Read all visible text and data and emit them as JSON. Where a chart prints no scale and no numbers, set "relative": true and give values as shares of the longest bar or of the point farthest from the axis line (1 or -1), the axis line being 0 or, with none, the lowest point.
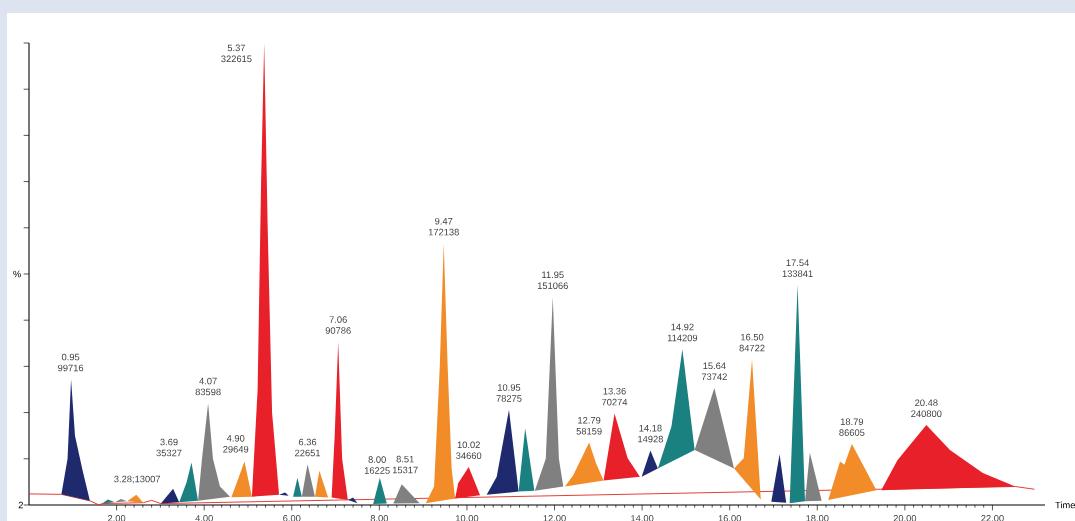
{
  "chart_data": {
    "type": "area",
    "relative": true,
    "xlabel": "Time",
    "ylabel": "%",
    "xlim": [
      0,
      23.2
    ],
    "xticks": [
      {
        "value": 2,
        "label": "2.00"
      },
      {
        "value": 4,
        "label": "4.00"
      },
      {
        "value": 6,
        "label": "6.00"
      },
      {
        "value": 8,
        "label": "8.00"
      },
      {
        "value": 10,
        "label": "10.00"
      },
      {
        "value": 12,
        "label": "12.00"
      },
      {
        "value": 14,
        "label": "14.00"
      },
      {
        "value": 16,
        "label": "16.00"
      },
      {
        "value": 18,
        "label": "18.00"
      },
      {
        "value": 20,
        "label": "20.00"
      },
      {
        "value": 22,
        "label": "22.00"
      }
    ],
    "series": [
      {
        "type": "line",
        "color": "#e0302a",
        "x": [
          0,
          0.74,
          1.39,
          1.6,
          1.67,
          2.61,
          2.8,
          3.01,
          22.52,
          22.96
        ],
        "values": [
          0.024,
          0.023,
          0.009,
          0.0,
          0.003,
          0.005,
          0.01,
          0.003,
          0.04,
          0.034
        ]
      },
      {
        "color": "#1f2a6e",
        "x": [
          0.74,
          0.88,
          0.96,
          1.05,
          1.22,
          1.39
        ],
        "values": [
          0.023,
          0.1,
          0.272,
          0.15,
          0.076,
          0.009
        ]
      },
      {
        "color": "#1a8080",
        "x": [
          1.67,
          1.8,
          1.96
        ],
        "values": [
          0.003,
          0.012,
          0.006
        ]
      },
      {
        "color": "#808080",
        "x": [
          1.96,
          2.1,
          2.24
        ],
        "values": [
          0.006,
          0.013,
          0.008
        ]
      },
      {
        "color": "#f28c28",
        "x": [
          2.24,
          2.45,
          2.61
        ],
        "values": [
          0.008,
          0.022,
          0.005
        ]
      },
      {
        "color": "#1f2a6e",
        "x": [
          3.01,
          3.29,
          3.43
        ],
        "values": [
          0.003,
          0.035,
          0.006
        ]
      },
      {
        "color": "#1a8080",
        "x": [
          3.43,
          3.6,
          3.71,
          3.86
        ],
        "values": [
          0.006,
          0.05,
          0.092,
          0.009
        ]
      },
      {
        "color": "#808080",
        "x": [
          3.86,
          3.95,
          4.09,
          4.2,
          4.36,
          4.59
        ],
        "values": [
          0.009,
          0.1,
          0.22,
          0.1,
          0.04,
          0.018
        ]
      },
      {
        "color": "#f28c28",
        "x": [
          4.62,
          4.75,
          4.92,
          5.09
        ],
        "values": [
          0.017,
          0.05,
          0.094,
          0.018
        ]
      },
      {
        "color": "#e8202a",
        "x": [
          5.09,
          5.22,
          5.3,
          5.37,
          5.45,
          5.55,
          5.71
        ],
        "values": [
          0.018,
          0.25,
          0.7,
          1,
          0.6,
          0.2,
          0.022
        ]
      },
      {
        "color": "#1f2a6e",
        "x": [
          5.71,
          5.85,
          5.93
        ],
        "values": [
          0.022,
          0.027,
          0.02
        ]
      },
      {
        "color": "#1a8080",
        "x": [
          6.03,
          6.13,
          6.23
        ],
        "values": [
          0.018,
          0.059,
          0.018
        ]
      },
      {
        "color": "#808080",
        "x": [
          6.23,
          6.36,
          6.53
        ],
        "values": [
          0.018,
          0.088,
          0.018
        ]
      },
      {
        "color": "#f28c28",
        "x": [
          6.53,
          6.63,
          6.83
        ],
        "values": [
          0.018,
          0.074,
          0.016
        ]
      },
      {
        "color": "#e8202a",
        "x": [
          6.91,
          6.98,
          7.06,
          7.15,
          7.28
        ],
        "values": [
          0.016,
          0.15,
          0.353,
          0.1,
          0.011
        ]
      },
      {
        "color": "#1f2a6e",
        "x": [
          7.29,
          7.4,
          7.5
        ],
        "values": [
          0.011,
          0.016,
          0.004
        ]
      },
      {
        "color": "#1a8080",
        "x": [
          7.86,
          8.01,
          8.17
        ],
        "values": [
          0.002,
          0.059,
          0.003
        ]
      },
      {
        "color": "#808080",
        "x": [
          8.32,
          8.51,
          8.71,
          8.92
        ],
        "values": [
          0.003,
          0.045,
          0.025,
          0.004
        ]
      },
      {
        "color": "#f28c28",
        "x": [
          9.06,
          9.25,
          9.38,
          9.47,
          9.56,
          9.65,
          9.73
        ],
        "values": [
          0.004,
          0.04,
          0.3,
          0.566,
          0.3,
          0.08,
          0.014
        ]
      },
      {
        "color": "#e8202a",
        "x": [
          9.73,
          9.8,
          10.04,
          10.3
        ],
        "values": [
          0.014,
          0.047,
          0.082,
          0.021
        ]
      },
      {
        "color": "#1f2a6e",
        "x": [
          10.45,
          10.68,
          10.96,
          11.18
        ],
        "values": [
          0.022,
          0.061,
          0.206,
          0.029
        ]
      },
      {
        "color": "#1a8080",
        "x": [
          11.18,
          11.33,
          11.54
        ],
        "values": [
          0.029,
          0.166,
          0.031
        ]
      },
      {
        "color": "#808080",
        "x": [
          11.55,
          11.8,
          11.96,
          12.1,
          12.2
        ],
        "values": [
          0.031,
          0.1,
          0.45,
          0.1,
          0.04
        ]
      },
      {
        "color": "#f28c28",
        "x": [
          12.24,
          12.43,
          12.79,
          12.95,
          13.12
        ],
        "values": [
          0.04,
          0.065,
          0.135,
          0.09,
          0.053
        ]
      },
      {
        "color": "#e8202a",
        "x": [
          13.12,
          13.37,
          13.67,
          13.95
        ],
        "values": [
          0.053,
          0.198,
          0.101,
          0.061
        ]
      },
      {
        "color": "#1f2a6e",
        "x": [
          13.99,
          14.19,
          14.36
        ],
        "values": [
          0.061,
          0.118,
          0.079
        ]
      },
      {
        "color": "#1a8080",
        "x": [
          14.36,
          14.67,
          14.92,
          15.2
        ],
        "values": [
          0.079,
          0.17,
          0.337,
          0.119
        ]
      },
      {
        "color": "#808080",
        "x": [
          15.2,
          15.65,
          16.1
        ],
        "values": [
          0.119,
          0.253,
          0.079
        ]
      },
      {
        "color": "#f28c28",
        "x": [
          16.1,
          16.32,
          16.51,
          16.71
        ],
        "values": [
          0.079,
          0.101,
          0.315,
          0.012
        ]
      },
      {
        "color": "#1f2a6e",
        "x": [
          16.95,
          17.14,
          17.29
        ],
        "values": [
          0.007,
          0.11,
          0.005
        ]
      },
      {
        "color": "#1a8080",
        "x": [
          17.37,
          17.55,
          17.72
        ],
        "values": [
          0.004,
          0.476,
          0.008
        ]
      },
      {
        "color": "#808080",
        "x": [
          17.72,
          17.83,
          18.1
        ],
        "values": [
          0.008,
          0.113,
          0.009
        ]
      },
      {
        "color": "#f28c28",
        "x": [
          18.25,
          18.52,
          18.62,
          18.79,
          19.35
        ],
        "values": [
          0.011,
          0.094,
          0.087,
          0.132,
          0.032
        ]
      },
      {
        "color": "#e8202a",
        "x": [
          19.46,
          19.83,
          20.49,
          21.03,
          21.78,
          22.52
        ],
        "values": [
          0.032,
          0.097,
          0.173,
          0.119,
          0.069,
          0.04
        ]
      }
    ],
    "annotations": [
      {
        "text": "0.95 99716",
        "x": 0.95,
        "y": 0.272
      },
      {
        "text": "3.28;13007",
        "x": 3.29,
        "y": 0.035
      },
      {
        "text": "3.69 35327",
        "x": 3.71,
        "y": 0.092
      },
      {
        "text": "4.07 83598",
        "x": 4.09,
        "y": 0.22
      },
      {
        "text": "4.90 29649",
        "x": 4.92,
        "y": 0.094
      },
      {
        "text": "5.37 322615",
        "x": 5.37,
        "y": 1
      },
      {
        "text": "6.36 22651",
        "x": 6.36,
        "y": 0.088
      },
      {
        "text": "7.06 90786",
        "x": 7.06,
        "y": 0.353
      },
      {
        "text": "8.00 16225",
        "x": 8.01,
        "y": 0.059
      },
      {
        "text": "8.51 15317",
        "x": 8.51,
        "y": 0.045
      },
      {
        "text": "9.47 172138",
        "x": 9.47,
        "y": 0.566
      },
      {
        "text": "10.02 34660",
        "x": 10.04,
        "y": 0.082
      },
      {
        "text": "10.95 78275",
        "x": 10.96,
        "y": 0.206
      },
      {
        "text": "11.95 151066",
        "x": 11.96,
        "y": 0.45
      },
      {
        "text": "12.79 58159",
        "x": 12.79,
        "y": 0.135
      },
      {
        "text": "13.36 70274",
        "x": 13.37,
        "y": 0.198
      },
      {
        "text": "14.18 14928",
        "x": 14.19,
        "y": 0.118
      },
      {
        "text": "14.92 114209",
        "x": 14.92,
        "y": 0.337
      },
      {
        "text": "15.64 73742",
        "x": 15.65,
        "y": 0.253
      },
      {
        "text": "16.50 84722",
        "x": 16.51,
        "y": 0.315
      },
      {
        "text": "17.54 133841",
        "x": 17.55,
        "y": 0.476
      },
      {
        "text": "18.79 86605",
        "x": 18.79,
        "y": 0.132
      },
      {
        "text": "20.48 240800",
        "x": 20.49,
        "y": 0.173
      },
      "2"
    ]
  }
}
